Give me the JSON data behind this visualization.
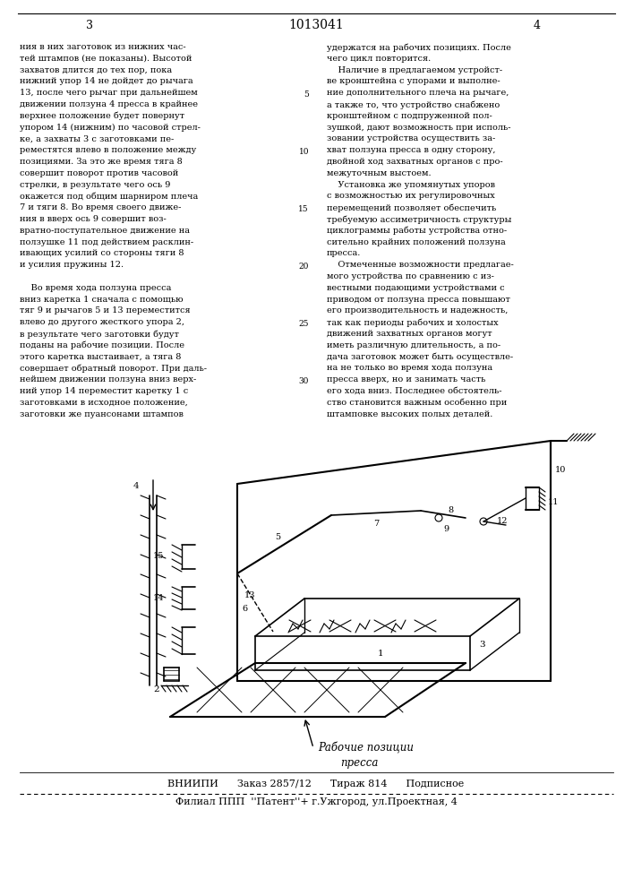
{
  "bg_color": "#ffffff",
  "page_number_left": "3",
  "page_number_center": "1013041",
  "page_number_right": "4",
  "col1_text": [
    "ния в них заготовок из нижних час-",
    "тей штампов (не показаны). Высотой",
    "захватов длится до тех пор, пока",
    "нижний упор 14 не дойдет до рычага",
    "13, после чего рычаг при дальнейшем",
    "движении ползуна 4 пресса в крайнее",
    "верхнее положение будет повернут",
    "упором 14 (нижним) по часовой стрел-",
    "ке, а захваты 3 с заготовками пе-",
    "реместятся влево в положение между",
    "позициями. За это же время тяга 8",
    "совершит поворот против часовой",
    "стрелки, в результате чего ось 9",
    "окажется под общим шарниром плеча",
    "7 и тяги 8. Во время своего движе-",
    "ния в вверх ось 9 совершит воз-",
    "вратно-поступательное движение на",
    "ползушке 11 под действием расклин-",
    "ивающих усилий со стороны тяги 8",
    "и усилия пружины 12.",
    "",
    "    Во время хода ползуна пресса",
    "вниз каретка 1 сначала с помощью",
    "тяг 9 и рычагов 5 и 13 переместится",
    "влево до другого жесткого упора 2,",
    "в результате чего заготовки будут",
    "поданы на рабочие позиции. После",
    "этого каретка выстаивает, а тяга 8",
    "совершает обратный поворот. При даль-",
    "нейшем движении ползуна вниз верх-",
    "ний упор 14 переместит каретку 1 с",
    "заготовками в исходное положение,",
    "заготовки же пуансонами штампов"
  ],
  "col2_text": [
    "удержатся на рабочих позициях. После",
    "чего цикл повторится.",
    "    Наличие в предлагаемом устройст-",
    "ве кронштейна с упорами и выполне-",
    "ние дополнительного плеча на рычаге,",
    "а также то, что устройство снабжено",
    "кронштейном с подпруженной пол-",
    "зушкой, дают возможность при исполь-",
    "зовании устройства осуществить за-",
    "хват ползуна пресса в одну сторону,",
    "двойной ход захватных органов с про-",
    "межуточным выстоем.",
    "    Установка же упомянутых упоров",
    "с возможностью их регулировочных",
    "перемещений позволяет обеспечить",
    "требуемую ассиметричность структуры",
    "циклограммы работы устройства отно-",
    "сительно крайних положений ползуна",
    "пресса.",
    "    Отмеченные возможности предлагае-",
    "мого устройства по сравнению с из-",
    "вестными подающими устройствами с",
    "приводом от ползуна пресса повышают",
    "его производительность и надежность,",
    "так как периоды рабочих и холостых",
    "движений захватных органов могут",
    "иметь различную длительность, а по-",
    "дача заготовок может быть осуществле-",
    "на не только во время хода ползуна",
    "пресса вверх, но и занимать часть",
    "его хода вниз. Последнее обстоятель-",
    "ство становится важным особенно при",
    "штамповке высоких полых деталей."
  ],
  "line_numbers_col2": [
    "5",
    "10",
    "15",
    "20",
    "25",
    "30"
  ],
  "line_numbers_rows": [
    4,
    9,
    14,
    19,
    24,
    29
  ],
  "footer_line1": "ВНИИПИ      Заказ 2857/12      Тираж 814      Подписное",
  "footer_line2": "Филиал ППП  ''Патент''+ г.Ужгород, ул.Проектная, 4"
}
